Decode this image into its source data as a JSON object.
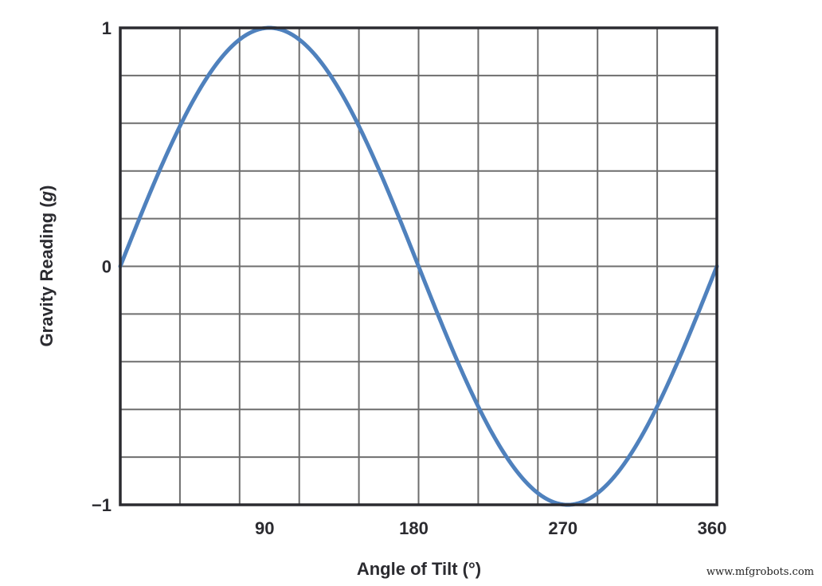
{
  "chart_data": {
    "type": "line",
    "title": "",
    "xlabel": "Angle of Tilt (°)",
    "ylabel_prefix": "Gravity Reading (",
    "ylabel_unit": "g",
    "ylabel_suffix": ")",
    "xlim": [
      0,
      360
    ],
    "ylim": [
      -1,
      1
    ],
    "x_tick_labels": [
      "90",
      "180",
      "270",
      "360"
    ],
    "x_ticks": [
      90,
      180,
      270,
      360
    ],
    "y_tick_labels": [
      "1",
      "0",
      "−1"
    ],
    "y_ticks": [
      1,
      0,
      -1
    ],
    "grid": true,
    "grid_x_divisions": 10,
    "grid_y_divisions": 10,
    "legend": null,
    "series": [
      {
        "name": "Gravity Reading",
        "function": "sin(angle)",
        "color": "#4f81bd",
        "x": [
          0,
          15,
          30,
          45,
          60,
          75,
          90,
          105,
          120,
          135,
          150,
          165,
          180,
          195,
          210,
          225,
          240,
          255,
          270,
          285,
          300,
          315,
          330,
          345,
          360
        ],
        "values": [
          0,
          0.259,
          0.5,
          0.707,
          0.866,
          0.966,
          1,
          0.966,
          0.866,
          0.707,
          0.5,
          0.259,
          0,
          -0.259,
          -0.5,
          -0.707,
          -0.866,
          -0.966,
          -1,
          -0.966,
          -0.866,
          -0.707,
          -0.5,
          -0.259,
          0
        ]
      }
    ]
  },
  "colors": {
    "axis": "#2b2b30",
    "grid": "#6e6e6e",
    "line": "#4f81bd",
    "text": "#2b2b30"
  },
  "watermark": "www.mfgrobots.com"
}
